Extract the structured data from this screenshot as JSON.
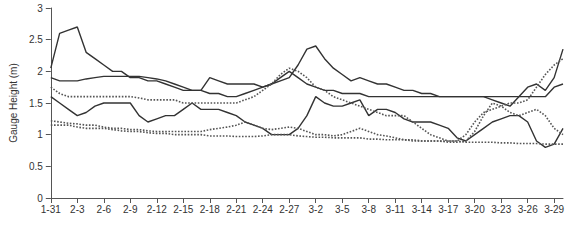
{
  "chart_data": {
    "type": "line",
    "y_label": "Gauge Height (m)",
    "categories": [
      "1-31",
      null,
      null,
      "2-3",
      null,
      null,
      "2-6",
      null,
      null,
      "2-9",
      null,
      null,
      "2-12",
      null,
      null,
      "2-15",
      null,
      null,
      "2-18",
      null,
      null,
      "2-21",
      null,
      null,
      "2-24",
      null,
      null,
      "2-27",
      null,
      null,
      "3-2",
      null,
      null,
      "3-5",
      null,
      null,
      "3-8",
      null,
      null,
      "3-11",
      null,
      null,
      "3-14",
      null,
      null,
      "3-17",
      null,
      null,
      "3-20",
      null,
      null,
      "3-23",
      null,
      null,
      "3-26",
      null,
      null,
      "3-29",
      null
    ],
    "ylim": [
      0,
      3
    ],
    "yticks": [
      0,
      0.5,
      1,
      1.5,
      2,
      2.5,
      3
    ],
    "grid": false,
    "series": [
      {
        "color": "#333333",
        "line_style": "solid",
        "values": [
          2.05,
          2.6,
          2.65,
          2.7,
          2.3,
          2.2,
          2.1,
          2.0,
          2.0,
          1.9,
          1.9,
          1.85,
          1.85,
          1.8,
          1.75,
          1.7,
          1.7,
          1.7,
          1.65,
          1.65,
          1.6,
          1.6,
          1.65,
          1.7,
          1.75,
          1.8,
          1.85,
          1.9,
          2.1,
          2.35,
          2.4,
          2.2,
          2.05,
          1.95,
          1.85,
          1.9,
          1.85,
          1.8,
          1.8,
          1.75,
          1.7,
          1.7,
          1.65,
          1.65,
          1.6,
          1.6,
          1.6,
          1.6,
          1.6,
          1.6,
          1.55,
          1.5,
          1.45,
          1.6,
          1.75,
          1.8,
          1.7,
          1.9,
          2.35
        ]
      },
      {
        "color": "#333333",
        "line_style": "solid",
        "values": [
          1.9,
          1.85,
          1.85,
          1.85,
          1.88,
          1.9,
          1.92,
          1.92,
          1.92,
          1.92,
          1.92,
          1.9,
          1.88,
          1.85,
          1.8,
          1.75,
          1.7,
          1.7,
          1.9,
          1.85,
          1.8,
          1.8,
          1.8,
          1.8,
          1.75,
          1.8,
          1.9,
          2.0,
          1.9,
          1.8,
          1.75,
          1.7,
          1.7,
          1.65,
          1.65,
          1.65,
          1.6,
          1.6,
          1.6,
          1.6,
          1.6,
          1.6,
          1.6,
          1.6,
          1.6,
          1.6,
          1.6,
          1.6,
          1.6,
          1.6,
          1.6,
          1.6,
          1.6,
          1.6,
          1.6,
          1.6,
          1.6,
          1.75,
          1.8
        ]
      },
      {
        "color": "#333333",
        "line_style": "solid",
        "values": [
          1.6,
          1.5,
          1.4,
          1.3,
          1.35,
          1.45,
          1.5,
          1.5,
          1.5,
          1.5,
          1.3,
          1.2,
          1.25,
          1.3,
          1.3,
          1.4,
          1.5,
          1.4,
          1.4,
          1.4,
          1.35,
          1.3,
          1.2,
          1.15,
          1.1,
          1.0,
          1.0,
          1.0,
          1.1,
          1.3,
          1.6,
          1.5,
          1.45,
          1.45,
          1.5,
          1.55,
          1.3,
          1.4,
          1.4,
          1.35,
          1.25,
          1.2,
          1.2,
          1.2,
          1.15,
          1.1,
          0.95,
          0.9,
          1.0,
          1.1,
          1.2,
          1.25,
          1.3,
          1.3,
          1.2,
          0.9,
          0.8,
          0.85,
          1.1
        ]
      },
      {
        "color": "#555555",
        "line_style": "dotted",
        "values": [
          1.75,
          1.65,
          1.6,
          1.6,
          1.6,
          1.6,
          1.6,
          1.6,
          1.6,
          1.6,
          1.58,
          1.55,
          1.55,
          1.55,
          1.55,
          1.5,
          1.5,
          1.5,
          1.5,
          1.5,
          1.5,
          1.5,
          1.55,
          1.6,
          1.7,
          1.8,
          1.95,
          2.05,
          2.0,
          1.9,
          1.75,
          1.7,
          1.6,
          1.55,
          1.5,
          1.45,
          1.4,
          1.35,
          1.3,
          1.3,
          1.3,
          1.2,
          1.1,
          1.0,
          0.95,
          0.9,
          0.9,
          1.0,
          1.2,
          1.35,
          1.4,
          1.45,
          1.5,
          1.5,
          1.55,
          1.75,
          1.95,
          2.1,
          2.2
        ]
      },
      {
        "color": "#555555",
        "line_style": "dotted",
        "values": [
          1.22,
          1.2,
          1.18,
          1.17,
          1.15,
          1.15,
          1.12,
          1.1,
          1.1,
          1.08,
          1.08,
          1.06,
          1.05,
          1.05,
          1.05,
          1.05,
          1.05,
          1.05,
          1.08,
          1.1,
          1.12,
          1.15,
          1.2,
          1.15,
          1.1,
          1.08,
          1.1,
          1.12,
          1.1,
          1.05,
          1.0,
          1.0,
          0.98,
          1.0,
          1.05,
          1.1,
          1.05,
          1.0,
          0.98,
          0.95,
          0.92,
          0.9,
          0.9,
          0.9,
          0.9,
          0.88,
          0.88,
          0.9,
          1.05,
          1.3,
          1.5,
          1.45,
          1.35,
          1.3,
          1.35,
          1.4,
          1.3,
          1.1,
          1.0
        ]
      },
      {
        "color": "#555555",
        "line_style": "dotted",
        "values": [
          1.15,
          1.15,
          1.15,
          1.12,
          1.1,
          1.1,
          1.1,
          1.08,
          1.06,
          1.05,
          1.05,
          1.03,
          1.02,
          1.02,
          1.0,
          1.0,
          1.0,
          1.0,
          0.98,
          0.98,
          0.98,
          0.97,
          0.97,
          0.97,
          0.98,
          1.0,
          1.0,
          1.0,
          0.98,
          0.97,
          0.96,
          0.96,
          0.95,
          0.95,
          0.95,
          0.95,
          0.93,
          0.93,
          0.92,
          0.92,
          0.92,
          0.92,
          0.9,
          0.9,
          0.9,
          0.9,
          0.9,
          0.88,
          0.88,
          0.88,
          0.88,
          0.87,
          0.87,
          0.86,
          0.86,
          0.86,
          0.85,
          0.85,
          0.85
        ]
      }
    ]
  }
}
